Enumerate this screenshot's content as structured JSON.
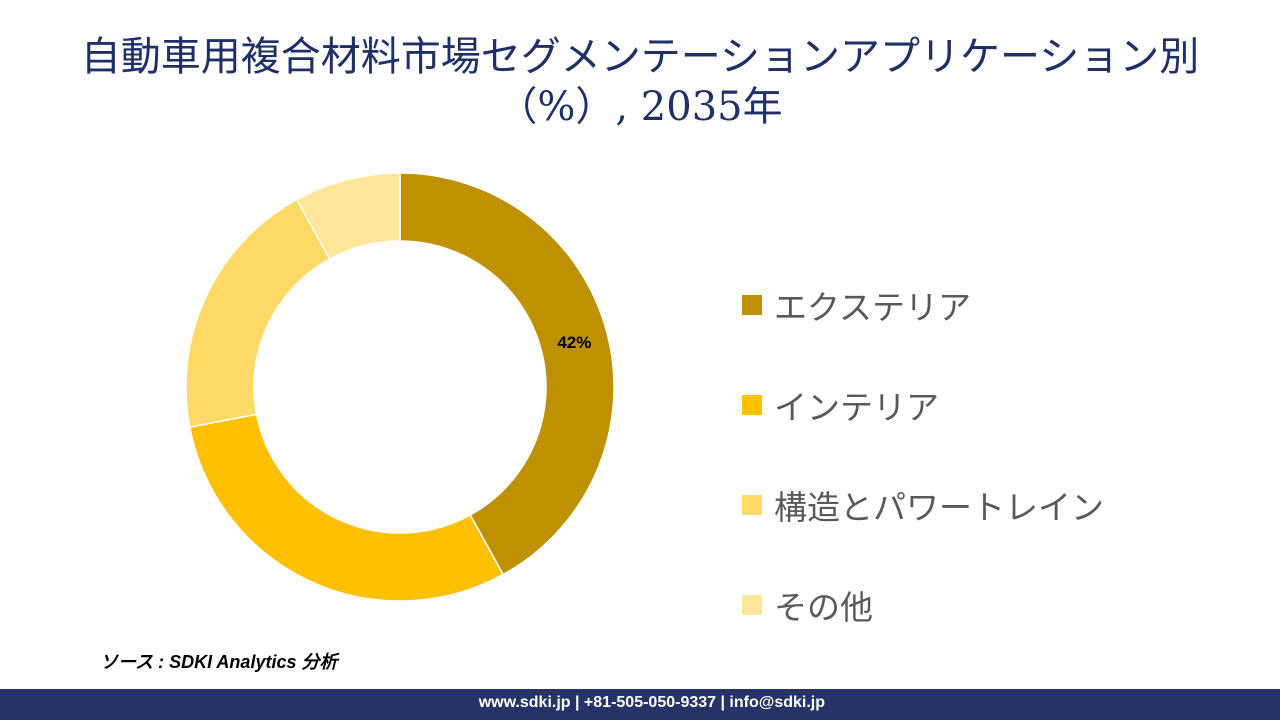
{
  "chart_data": {
    "type": "pie",
    "variant": "donut",
    "title": "自動車用複合材料市場セグメンテーションアプリケーション別（%）, 2035年",
    "title_lines": [
      "自動車用複合材料市場セグメンテーションアプリケーション別",
      "（%）, 2035年"
    ],
    "categories": [
      "エクステリア",
      "インテリア",
      "構造とパワートレイン",
      "その他"
    ],
    "values": [
      42,
      30,
      20,
      8
    ],
    "data_labels": [
      "42%",
      null,
      null,
      null
    ],
    "colors": [
      "#BF9000",
      "#FFC000",
      "#FFD966",
      "#FFE699"
    ],
    "legend_position": "right"
  },
  "source": "ソース : SDKI Analytics 分析",
  "footer": "www.sdki.jp | +81-505-050-9337 | info@sdki.jp"
}
